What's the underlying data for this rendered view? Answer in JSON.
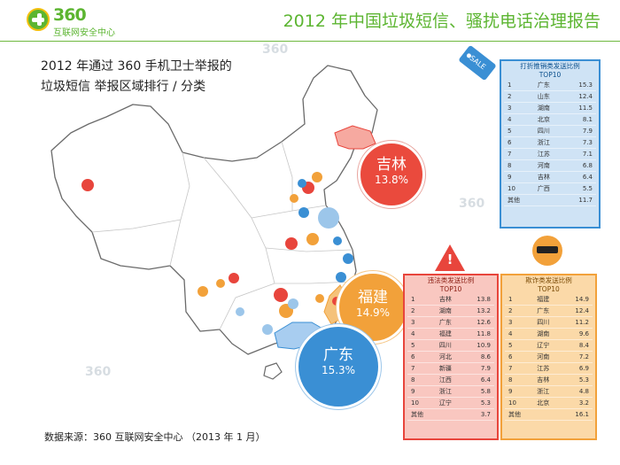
{
  "header": {
    "logo_number": "360",
    "logo_name": "互联网安全中心",
    "report_title": "2012 年中国垃圾短信、骚扰电话治理报告"
  },
  "subtitle_line1": "2012 年通过 360 手机卫士举报的",
  "subtitle_line2": "垃圾短信 举报区域排行 / 分类",
  "source": "数据来源：360 互联网安全中心 （2013 年 1 月）",
  "sale_tag": "SALE",
  "warning_mark": "!",
  "watermark": "360",
  "colors": {
    "accent": "#5cb531",
    "red": "#e8453c",
    "orange": "#f2a13a",
    "blue": "#3a8fd4"
  },
  "bubbles": {
    "jilin": {
      "province": "吉林",
      "value": "13.8%"
    },
    "fujian": {
      "province": "福建",
      "value": "14.9%"
    },
    "guangdong": {
      "province": "广东",
      "value": "15.3%"
    }
  },
  "chart_data": [
    {
      "type": "table",
      "title": "打折推销类发送比例",
      "subtitle": "TOP10",
      "rows": [
        [
          "1",
          "广东",
          "15.3"
        ],
        [
          "2",
          "山东",
          "12.4"
        ],
        [
          "3",
          "湖南",
          "11.5"
        ],
        [
          "4",
          "北京",
          "8.1"
        ],
        [
          "5",
          "四川",
          "7.9"
        ],
        [
          "6",
          "浙江",
          "7.3"
        ],
        [
          "7",
          "江苏",
          "7.1"
        ],
        [
          "8",
          "河南",
          "6.8"
        ],
        [
          "9",
          "吉林",
          "6.4"
        ],
        [
          "10",
          "广西",
          "5.5"
        ]
      ],
      "other_label": "其他",
      "other_value": "11.7"
    },
    {
      "type": "table",
      "title": "违法类发送比例",
      "subtitle": "TOP10",
      "rows": [
        [
          "1",
          "吉林",
          "13.8"
        ],
        [
          "2",
          "湖南",
          "13.2"
        ],
        [
          "3",
          "广东",
          "12.6"
        ],
        [
          "4",
          "福建",
          "11.8"
        ],
        [
          "5",
          "四川",
          "10.9"
        ],
        [
          "6",
          "河北",
          "8.6"
        ],
        [
          "7",
          "新疆",
          "7.9"
        ],
        [
          "8",
          "江西",
          "6.4"
        ],
        [
          "9",
          "浙江",
          "5.8"
        ],
        [
          "10",
          "辽宁",
          "5.3"
        ]
      ],
      "other_label": "其他",
      "other_value": "3.7"
    },
    {
      "type": "table",
      "title": "欺诈类发送比例",
      "subtitle": "TOP10",
      "rows": [
        [
          "1",
          "福建",
          "14.9"
        ],
        [
          "2",
          "广东",
          "12.4"
        ],
        [
          "3",
          "四川",
          "11.2"
        ],
        [
          "4",
          "湖南",
          "9.6"
        ],
        [
          "5",
          "辽宁",
          "8.4"
        ],
        [
          "6",
          "河南",
          "7.2"
        ],
        [
          "7",
          "江苏",
          "6.9"
        ],
        [
          "8",
          "吉林",
          "5.3"
        ],
        [
          "9",
          "浙江",
          "4.8"
        ],
        [
          "10",
          "北京",
          "3.2"
        ]
      ],
      "other_label": "其他",
      "other_value": "16.1"
    }
  ]
}
